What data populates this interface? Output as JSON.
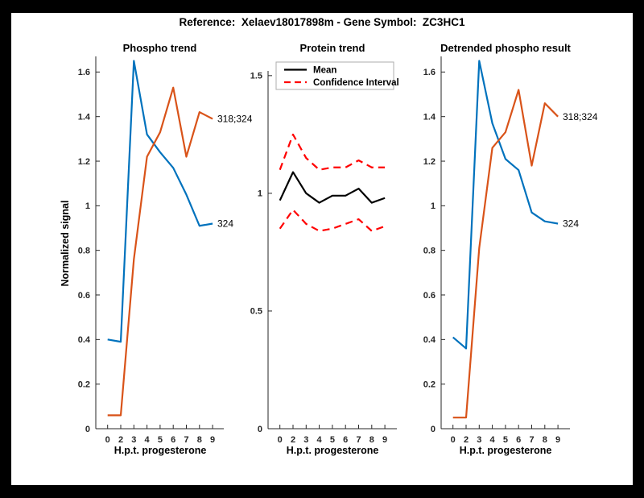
{
  "page_title": "Reference:  Xelaev18017898m - Gene Symbol:  ZC3HC1",
  "frame": {
    "background": "#000000",
    "canvas": "#ffffff"
  },
  "axis_color": "#262626",
  "chart_data": [
    {
      "type": "line",
      "title": "Phospho trend",
      "xlabel": "H.p.t. progesterone",
      "ylabel": "Normalized signal",
      "categories": [
        "0",
        "2",
        "3",
        "4",
        "5",
        "6",
        "7",
        "8",
        "9"
      ],
      "yticks": [
        0,
        0.2,
        0.4,
        0.6,
        0.8,
        1,
        1.2,
        1.4,
        1.6
      ],
      "ylim": [
        0,
        1.67
      ],
      "grid": false,
      "series": [
        {
          "name": "324",
          "color": "#0072BD",
          "dashed": false,
          "end_label": "324",
          "values": [
            0.4,
            0.39,
            1.65,
            1.32,
            1.24,
            1.17,
            1.05,
            0.91,
            0.92
          ]
        },
        {
          "name": "318;324",
          "color": "#D95319",
          "dashed": false,
          "end_label": "318;324",
          "values": [
            0.06,
            0.06,
            0.76,
            1.22,
            1.33,
            1.53,
            1.22,
            1.42,
            1.39
          ]
        }
      ]
    },
    {
      "type": "line",
      "title": "Protein trend",
      "xlabel": "H.p.t. progesterone",
      "ylabel": "",
      "categories": [
        "0",
        "2",
        "3",
        "4",
        "5",
        "6",
        "7",
        "8",
        "9"
      ],
      "yticks": [
        0,
        0.5,
        1,
        1.5
      ],
      "ylim": [
        0,
        1.52
      ],
      "grid": false,
      "legend": {
        "position": "northwest",
        "entries": [
          {
            "label": "Mean",
            "color": "#000000",
            "dashed": false
          },
          {
            "label": "Confidence Interval",
            "color": "#FF0000",
            "dashed": true
          }
        ]
      },
      "series": [
        {
          "name": "Confidence Interval upper",
          "color": "#FF0000",
          "dashed": true,
          "values": [
            1.1,
            1.25,
            1.15,
            1.1,
            1.11,
            1.11,
            1.14,
            1.11,
            1.11
          ]
        },
        {
          "name": "Confidence Interval lower",
          "color": "#FF0000",
          "dashed": true,
          "values": [
            0.85,
            0.93,
            0.87,
            0.84,
            0.85,
            0.87,
            0.89,
            0.84,
            0.86
          ]
        },
        {
          "name": "Mean",
          "color": "#000000",
          "dashed": false,
          "values": [
            0.97,
            1.09,
            1.0,
            0.96,
            0.99,
            0.99,
            1.02,
            0.96,
            0.98
          ]
        }
      ]
    },
    {
      "type": "line",
      "title": "Detrended phospho result",
      "xlabel": "H.p.t. progesterone",
      "ylabel": "",
      "categories": [
        "0",
        "2",
        "3",
        "4",
        "5",
        "6",
        "7",
        "8",
        "9"
      ],
      "yticks": [
        0,
        0.2,
        0.4,
        0.6,
        0.8,
        1,
        1.2,
        1.4,
        1.6
      ],
      "ylim": [
        0,
        1.67
      ],
      "grid": false,
      "series": [
        {
          "name": "324",
          "color": "#0072BD",
          "dashed": false,
          "end_label": "324",
          "values": [
            0.41,
            0.36,
            1.65,
            1.37,
            1.21,
            1.16,
            0.97,
            0.93,
            0.92
          ]
        },
        {
          "name": "318;324",
          "color": "#D95319",
          "dashed": false,
          "end_label": "318;324",
          "values": [
            0.05,
            0.05,
            0.81,
            1.26,
            1.33,
            1.52,
            1.18,
            1.46,
            1.4
          ]
        }
      ]
    }
  ]
}
